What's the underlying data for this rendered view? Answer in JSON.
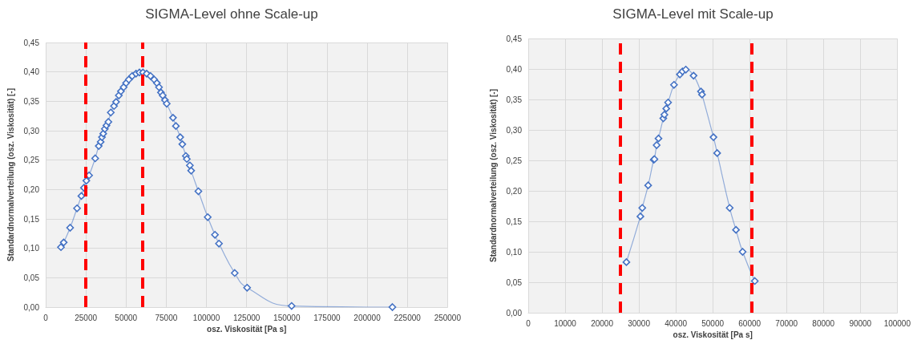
{
  "chart_data": [
    {
      "type": "line",
      "title": "SIGMA-Level ohne Scale-up",
      "xlabel": "osz. Viskosität [Pa s]",
      "ylabel": "Standardnormalverteilung (osz. Viskosität) [-]",
      "x": [
        9500,
        11200,
        15200,
        19500,
        22200,
        23800,
        25300,
        27000,
        30800,
        33000,
        34200,
        35000,
        35800,
        36800,
        37800,
        39000,
        40500,
        42500,
        43800,
        45500,
        46800,
        48500,
        50000,
        51700,
        53800,
        56200,
        58300,
        60500,
        62800,
        65200,
        67500,
        69200,
        70500,
        71700,
        72800,
        74200,
        75300,
        79200,
        81000,
        83700,
        85000,
        87200,
        87800,
        89700,
        90500,
        95000,
        100800,
        105300,
        107800,
        117600,
        125300,
        153000,
        215700
      ],
      "series": [
        {
          "color": "#4472c4",
          "values": [
            0.102,
            0.11,
            0.135,
            0.168,
            0.189,
            0.203,
            0.215,
            0.224,
            0.253,
            0.274,
            0.281,
            0.289,
            0.295,
            0.303,
            0.309,
            0.315,
            0.331,
            0.342,
            0.349,
            0.36,
            0.367,
            0.374,
            0.381,
            0.387,
            0.393,
            0.397,
            0.399,
            0.399,
            0.397,
            0.393,
            0.387,
            0.381,
            0.374,
            0.365,
            0.36,
            0.352,
            0.346,
            0.322,
            0.308,
            0.289,
            0.277,
            0.257,
            0.252,
            0.241,
            0.232,
            0.197,
            0.153,
            0.123,
            0.108,
            0.058,
            0.033,
            0.002,
            0
          ]
        }
      ],
      "xlim": [
        0,
        250000
      ],
      "xticks": [
        0,
        25000,
        50000,
        75000,
        100000,
        125000,
        150000,
        175000,
        200000,
        225000,
        250000
      ],
      "ylim": [
        0,
        0.45
      ],
      "yticks": [
        {
          "value": 0,
          "label": "0,00"
        },
        {
          "value": 0.05,
          "label": "0,05"
        },
        {
          "value": 0.1,
          "label": "0,10"
        },
        {
          "value": 0.15,
          "label": "0,15"
        },
        {
          "value": 0.2,
          "label": "0,20"
        },
        {
          "value": 0.25,
          "label": "0,25"
        },
        {
          "value": 0.3,
          "label": "0,30"
        },
        {
          "value": 0.35,
          "label": "0,35"
        },
        {
          "value": 0.4,
          "label": "0,40"
        },
        {
          "value": 0.45,
          "label": "0,45"
        }
      ],
      "ref_lines": [
        {
          "axis": "x",
          "value": 25000,
          "color": "#ff0000",
          "line_style": "dashed"
        },
        {
          "axis": "x",
          "value": 60000,
          "color": "#ff0000",
          "line_style": "dashed"
        }
      ],
      "grid": true,
      "marker": "diamond",
      "line_style": "solid"
    },
    {
      "type": "line",
      "title": "SIGMA-Level mit Scale-up",
      "xlabel": "osz. Viskosität [Pa s]",
      "ylabel": "Standardnormalverteilung (osz. Viskosität) [-]",
      "x": [
        26600,
        30400,
        30900,
        32500,
        34000,
        34200,
        34800,
        35300,
        36600,
        36900,
        37400,
        37900,
        39500,
        41100,
        41800,
        42700,
        44800,
        46800,
        47100,
        50200,
        51200,
        54600,
        56300,
        58100,
        61400
      ],
      "series": [
        {
          "color": "#4472c4",
          "values": [
            0.083,
            0.158,
            0.172,
            0.209,
            0.251,
            0.252,
            0.275,
            0.286,
            0.319,
            0.325,
            0.335,
            0.345,
            0.374,
            0.391,
            0.396,
            0.399,
            0.389,
            0.363,
            0.358,
            0.288,
            0.262,
            0.172,
            0.136,
            0.1,
            0.052
          ]
        }
      ],
      "xlim": [
        0,
        100000
      ],
      "xticks": [
        0,
        10000,
        20000,
        30000,
        40000,
        50000,
        60000,
        70000,
        80000,
        90000,
        100000
      ],
      "ylim": [
        0,
        0.45
      ],
      "yticks": [
        {
          "value": 0,
          "label": "0,00"
        },
        {
          "value": 0.05,
          "label": "0,05"
        },
        {
          "value": 0.1,
          "label": "0,10"
        },
        {
          "value": 0.15,
          "label": "0,15"
        },
        {
          "value": 0.2,
          "label": "0,20"
        },
        {
          "value": 0.25,
          "label": "0,25"
        },
        {
          "value": 0.3,
          "label": "0,30"
        },
        {
          "value": 0.35,
          "label": "0,35"
        },
        {
          "value": 0.4,
          "label": "0,40"
        },
        {
          "value": 0.45,
          "label": "0,45"
        }
      ],
      "ref_lines": [
        {
          "axis": "x",
          "value": 25000,
          "color": "#ff0000",
          "line_style": "dashed"
        },
        {
          "axis": "x",
          "value": 60500,
          "color": "#ff0000",
          "line_style": "dashed"
        }
      ],
      "grid": true,
      "marker": "diamond",
      "line_style": "solid"
    }
  ]
}
